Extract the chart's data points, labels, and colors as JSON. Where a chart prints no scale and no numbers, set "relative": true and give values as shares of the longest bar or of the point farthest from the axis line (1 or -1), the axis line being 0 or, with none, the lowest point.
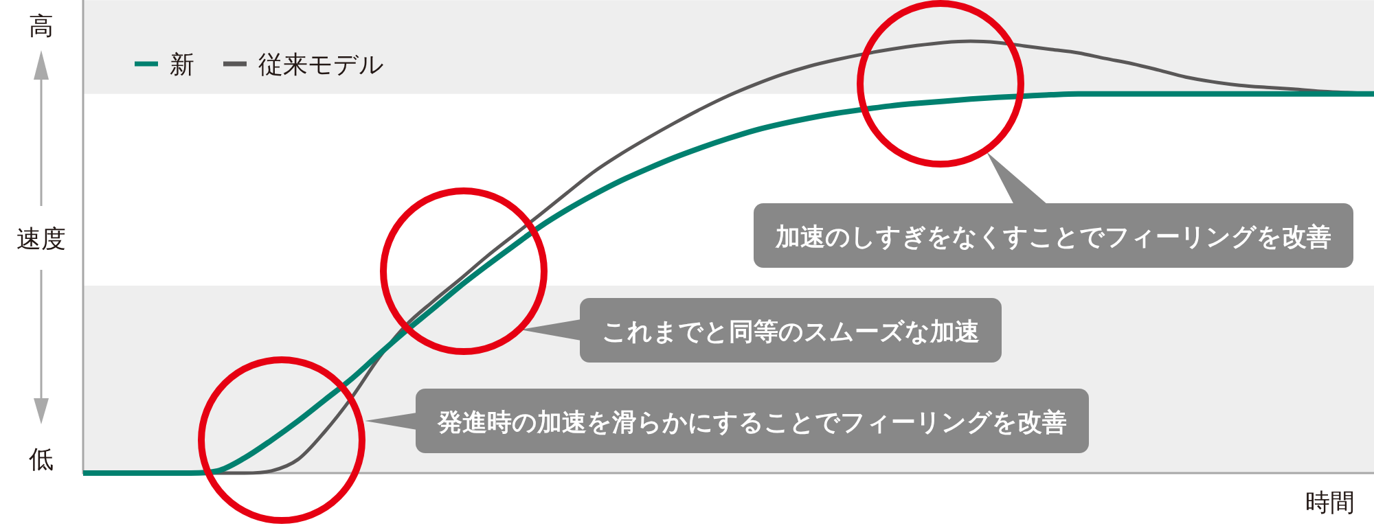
{
  "chart_data": {
    "type": "line",
    "relative": true,
    "ylabel": "速度",
    "xlabel": "時間",
    "categories": [
      null,
      null,
      null,
      null,
      null,
      null,
      null,
      null,
      null,
      null,
      null,
      null,
      null,
      null,
      null,
      null,
      null,
      null,
      null,
      null,
      null,
      null,
      null,
      null,
      null,
      null,
      null,
      null,
      null,
      null,
      null,
      null,
      null,
      null,
      null,
      null,
      null,
      null,
      null,
      null,
      null,
      null,
      null,
      null,
      null,
      null,
      null,
      null,
      null
    ],
    "series": [
      {
        "name": "新",
        "color": "#00806f",
        "values": [
          0,
          0,
          0,
          0,
          0,
          0.005,
          0.035,
          0.076,
          0.121,
          0.17,
          0.219,
          0.275,
          0.329,
          0.38,
          0.432,
          0.48,
          0.526,
          0.571,
          0.61,
          0.645,
          0.677,
          0.705,
          0.731,
          0.754,
          0.775,
          0.794,
          0.809,
          0.822,
          0.833,
          0.842,
          0.85,
          0.856,
          0.861,
          0.866,
          0.87,
          0.873,
          0.876,
          0.878,
          0.878,
          0.878,
          0.878,
          0.878,
          0.878,
          0.878,
          0.878,
          0.878,
          0.878,
          0.878,
          0.878
        ]
      },
      {
        "name": "従来モデル",
        "color": "#595757",
        "values": [
          0,
          0,
          0,
          0,
          0,
          0,
          0,
          0.005,
          0.032,
          0.097,
          0.176,
          0.267,
          0.342,
          0.397,
          0.448,
          0.501,
          0.55,
          0.599,
          0.649,
          0.698,
          0.739,
          0.776,
          0.811,
          0.844,
          0.874,
          0.9,
          0.923,
          0.942,
          0.957,
          0.97,
          0.981,
          0.99,
          0.997,
          1.0,
          0.997,
          0.989,
          0.981,
          0.973,
          0.96,
          0.948,
          0.933,
          0.917,
          0.906,
          0.898,
          0.893,
          0.889,
          0.884,
          0.881,
          0.878
        ]
      }
    ],
    "bands": [
      {
        "axis": "y",
        "from": 0,
        "to": 0.434,
        "color": "#eeeeee"
      },
      {
        "axis": "y",
        "from": 0.878,
        "to": 1.095,
        "color": "#eeeeee"
      }
    ],
    "annotations": [
      "高",
      "低",
      "加速のしすぎをなくすことでフィーリングを改善",
      "これまでと同等のスムーズな加速",
      "発進時の加速を滑らかにすることでフィーリングを改善"
    ],
    "legend": "top left",
    "line_style": "solid"
  }
}
